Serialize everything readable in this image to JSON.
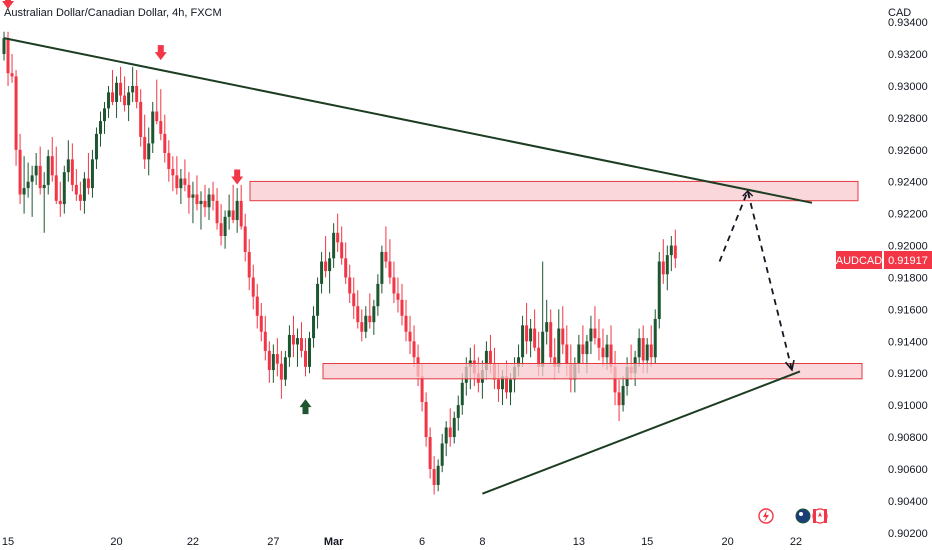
{
  "header": {
    "title": "Australian Dollar/Canadian Dollar, 4h, FXCM",
    "currency": "CAD"
  },
  "price_label": {
    "symbol": "AUDCAD",
    "value": "0.91917"
  },
  "colors": {
    "up": "#1e5631",
    "down": "#f23645",
    "trendline": "#1d3d23",
    "zone_fill": "#f7c9cd",
    "zone_stroke": "#e5393f",
    "label_bg": "#f23645"
  },
  "icons": [
    "flash-icon",
    "australia-flag-icon",
    "canada-flag-icon"
  ],
  "chart_data": {
    "type": "candlestick",
    "title": "Australian Dollar/Canadian Dollar, 4h, FXCM",
    "ylim": [
      0.9018,
      0.9352
    ],
    "y_ticks": [
      "0.93400",
      "0.93200",
      "0.93000",
      "0.92800",
      "0.92600",
      "0.92400",
      "0.92200",
      "0.92000",
      "0.91800",
      "0.91600",
      "0.91400",
      "0.91200",
      "0.91000",
      "0.90800",
      "0.90600",
      "0.90400",
      "0.90200"
    ],
    "x_ticks": [
      "15",
      "20",
      "22",
      "27",
      "Mar",
      "6",
      "8",
      "13",
      "15",
      "20",
      "22"
    ],
    "x_index_range": [
      0,
      209
    ],
    "x_tick_index": [
      1,
      28,
      47,
      67,
      82,
      104,
      119,
      143,
      160,
      180,
      197
    ],
    "resistance_zone": [
      0.92281,
      0.92402
    ],
    "support_zone": [
      0.91165,
      0.91261
    ],
    "trendlines": [
      {
        "from": [
          0,
          0.933
        ],
        "to": [
          201,
          0.92268
        ]
      },
      {
        "from": [
          119,
          0.90445
        ],
        "to": [
          198,
          0.91211
        ]
      }
    ],
    "projection": [
      [
        178,
        0.919
      ],
      [
        185,
        0.92341
      ],
      [
        196,
        0.91221
      ]
    ],
    "sell_arrows": [
      [
        1,
        0.9352
      ],
      [
        39,
        0.932
      ],
      [
        58,
        0.9242
      ]
    ],
    "buy_arrows": [
      [
        75,
        0.91
      ]
    ],
    "ohlc": [
      [
        0.932,
        0.9334,
        0.9316,
        0.933
      ],
      [
        0.933,
        0.9334,
        0.93,
        0.9308
      ],
      [
        0.9308,
        0.932,
        0.9302,
        0.9306
      ],
      [
        0.9306,
        0.931,
        0.925,
        0.926
      ],
      [
        0.926,
        0.927,
        0.9226,
        0.9232
      ],
      [
        0.9232,
        0.9256,
        0.922,
        0.9236
      ],
      [
        0.9236,
        0.9252,
        0.923,
        0.924
      ],
      [
        0.924,
        0.925,
        0.9218,
        0.9244
      ],
      [
        0.9244,
        0.9258,
        0.9238,
        0.925
      ],
      [
        0.925,
        0.9262,
        0.9232,
        0.9236
      ],
      [
        0.9236,
        0.9246,
        0.9208,
        0.9238
      ],
      [
        0.9238,
        0.926,
        0.9232,
        0.9256
      ],
      [
        0.9256,
        0.9268,
        0.924,
        0.9244
      ],
      [
        0.9244,
        0.9262,
        0.9226,
        0.9228
      ],
      [
        0.9228,
        0.924,
        0.9218,
        0.9226
      ],
      [
        0.9226,
        0.925,
        0.922,
        0.9246
      ],
      [
        0.9246,
        0.9266,
        0.924,
        0.9254
      ],
      [
        0.9254,
        0.9264,
        0.9234,
        0.9238
      ],
      [
        0.9238,
        0.9248,
        0.9228,
        0.9232
      ],
      [
        0.9232,
        0.924,
        0.9222,
        0.9228
      ],
      [
        0.9228,
        0.9246,
        0.922,
        0.9242
      ],
      [
        0.9242,
        0.9258,
        0.9232,
        0.9236
      ],
      [
        0.9236,
        0.926,
        0.923,
        0.9254
      ],
      [
        0.9254,
        0.9274,
        0.9248,
        0.927
      ],
      [
        0.927,
        0.9284,
        0.9262,
        0.9278
      ],
      [
        0.9278,
        0.929,
        0.927,
        0.9286
      ],
      [
        0.9286,
        0.93,
        0.928,
        0.9296
      ],
      [
        0.9296,
        0.931,
        0.9288,
        0.929
      ],
      [
        0.929,
        0.9306,
        0.928,
        0.9302
      ],
      [
        0.9302,
        0.9312,
        0.929,
        0.9294
      ],
      [
        0.9294,
        0.9306,
        0.9284,
        0.9288
      ],
      [
        0.9288,
        0.93,
        0.9278,
        0.9296
      ],
      [
        0.9296,
        0.9312,
        0.929,
        0.93
      ],
      [
        0.93,
        0.931,
        0.9286,
        0.929
      ],
      [
        0.929,
        0.9298,
        0.9262,
        0.9268
      ],
      [
        0.9268,
        0.9282,
        0.9248,
        0.9254
      ],
      [
        0.9254,
        0.9274,
        0.9244,
        0.9264
      ],
      [
        0.9264,
        0.929,
        0.9258,
        0.9284
      ],
      [
        0.9284,
        0.9304,
        0.9276,
        0.9278
      ],
      [
        0.9278,
        0.9298,
        0.9266,
        0.927
      ],
      [
        0.927,
        0.9282,
        0.9252,
        0.9258
      ],
      [
        0.9258,
        0.9266,
        0.924,
        0.9248
      ],
      [
        0.9248,
        0.9256,
        0.9234,
        0.9244
      ],
      [
        0.9244,
        0.9256,
        0.9232,
        0.9236
      ],
      [
        0.9236,
        0.9248,
        0.9226,
        0.9242
      ],
      [
        0.9242,
        0.9254,
        0.9234,
        0.9238
      ],
      [
        0.9238,
        0.9246,
        0.922,
        0.923
      ],
      [
        0.923,
        0.924,
        0.9214,
        0.9232
      ],
      [
        0.9232,
        0.9244,
        0.9222,
        0.9226
      ],
      [
        0.9226,
        0.9234,
        0.921,
        0.9228
      ],
      [
        0.9228,
        0.9238,
        0.9218,
        0.9224
      ],
      [
        0.9224,
        0.9236,
        0.9216,
        0.9232
      ],
      [
        0.9232,
        0.924,
        0.9222,
        0.9228
      ],
      [
        0.9228,
        0.9236,
        0.921,
        0.9214
      ],
      [
        0.9214,
        0.9226,
        0.92,
        0.9206
      ],
      [
        0.9206,
        0.9222,
        0.9198,
        0.9218
      ],
      [
        0.9218,
        0.9232,
        0.921,
        0.9222
      ],
      [
        0.9222,
        0.9238,
        0.9214,
        0.9216
      ],
      [
        0.9216,
        0.9236,
        0.9208,
        0.9228
      ],
      [
        0.9228,
        0.9238,
        0.921,
        0.9212
      ],
      [
        0.9212,
        0.922,
        0.919,
        0.9196
      ],
      [
        0.9196,
        0.9204,
        0.9172,
        0.918
      ],
      [
        0.918,
        0.9188,
        0.916,
        0.9168
      ],
      [
        0.9168,
        0.9176,
        0.9148,
        0.9156
      ],
      [
        0.9156,
        0.9164,
        0.914,
        0.9146
      ],
      [
        0.9146,
        0.9156,
        0.9128,
        0.9134
      ],
      [
        0.9134,
        0.914,
        0.9114,
        0.9122
      ],
      [
        0.9122,
        0.9138,
        0.9114,
        0.9132
      ],
      [
        0.9132,
        0.9142,
        0.9118,
        0.9126
      ],
      [
        0.9126,
        0.9134,
        0.9104,
        0.9116
      ],
      [
        0.9116,
        0.9134,
        0.9112,
        0.913
      ],
      [
        0.913,
        0.915,
        0.9124,
        0.9144
      ],
      [
        0.9144,
        0.9156,
        0.913,
        0.9138
      ],
      [
        0.9138,
        0.9148,
        0.9124,
        0.9142
      ],
      [
        0.9142,
        0.9152,
        0.913,
        0.9134
      ],
      [
        0.9134,
        0.9142,
        0.9118,
        0.9124
      ],
      [
        0.9124,
        0.9146,
        0.912,
        0.9142
      ],
      [
        0.9142,
        0.9162,
        0.9136,
        0.9156
      ],
      [
        0.9156,
        0.918,
        0.9148,
        0.9176
      ],
      [
        0.9176,
        0.9196,
        0.917,
        0.919
      ],
      [
        0.919,
        0.9206,
        0.918,
        0.9184
      ],
      [
        0.9184,
        0.9196,
        0.917,
        0.9192
      ],
      [
        0.9192,
        0.9214,
        0.9186,
        0.9208
      ],
      [
        0.9208,
        0.922,
        0.9196,
        0.9202
      ],
      [
        0.9202,
        0.9212,
        0.9188,
        0.9192
      ],
      [
        0.9192,
        0.9202,
        0.9176,
        0.918
      ],
      [
        0.918,
        0.9188,
        0.9164,
        0.917
      ],
      [
        0.917,
        0.918,
        0.9154,
        0.9162
      ],
      [
        0.9162,
        0.9172,
        0.9148,
        0.9152
      ],
      [
        0.9152,
        0.916,
        0.914,
        0.9146
      ],
      [
        0.9146,
        0.9162,
        0.9142,
        0.9156
      ],
      [
        0.9156,
        0.917,
        0.9148,
        0.9152
      ],
      [
        0.9152,
        0.9166,
        0.9144,
        0.9162
      ],
      [
        0.9162,
        0.9182,
        0.9156,
        0.9176
      ],
      [
        0.9176,
        0.92,
        0.917,
        0.9196
      ],
      [
        0.9196,
        0.9212,
        0.9186,
        0.919
      ],
      [
        0.919,
        0.9204,
        0.9176,
        0.918
      ],
      [
        0.918,
        0.919,
        0.9164,
        0.917
      ],
      [
        0.917,
        0.918,
        0.9158,
        0.9166
      ],
      [
        0.9166,
        0.9176,
        0.915,
        0.9156
      ],
      [
        0.9156,
        0.9166,
        0.914,
        0.9146
      ],
      [
        0.9146,
        0.9156,
        0.9132,
        0.914
      ],
      [
        0.914,
        0.915,
        0.9124,
        0.913
      ],
      [
        0.913,
        0.9138,
        0.9112,
        0.9118
      ],
      [
        0.9118,
        0.9126,
        0.9096,
        0.9102
      ],
      [
        0.9102,
        0.9108,
        0.9074,
        0.908
      ],
      [
        0.908,
        0.9086,
        0.9054,
        0.906
      ],
      [
        0.906,
        0.9068,
        0.9044,
        0.905
      ],
      [
        0.905,
        0.9066,
        0.9046,
        0.9062
      ],
      [
        0.9062,
        0.9082,
        0.9058,
        0.9076
      ],
      [
        0.9076,
        0.909,
        0.9068,
        0.9086
      ],
      [
        0.9086,
        0.9098,
        0.9074,
        0.908
      ],
      [
        0.908,
        0.9096,
        0.9076,
        0.9092
      ],
      [
        0.9092,
        0.9106,
        0.9084,
        0.91
      ],
      [
        0.91,
        0.912,
        0.9094,
        0.9114
      ],
      [
        0.9114,
        0.913,
        0.9106,
        0.9124
      ],
      [
        0.9124,
        0.9136,
        0.911,
        0.9128
      ],
      [
        0.9128,
        0.9138,
        0.9112,
        0.912
      ],
      [
        0.912,
        0.913,
        0.9108,
        0.9114
      ],
      [
        0.9114,
        0.9128,
        0.9104,
        0.9122
      ],
      [
        0.9122,
        0.914,
        0.9116,
        0.9134
      ],
      [
        0.9134,
        0.9144,
        0.912,
        0.9126
      ],
      [
        0.9126,
        0.9136,
        0.911,
        0.9116
      ],
      [
        0.9116,
        0.9126,
        0.9102,
        0.911
      ],
      [
        0.911,
        0.9122,
        0.91,
        0.9118
      ],
      [
        0.9118,
        0.9128,
        0.9104,
        0.9108
      ],
      [
        0.9108,
        0.912,
        0.91,
        0.9116
      ],
      [
        0.9116,
        0.913,
        0.9108,
        0.9124
      ],
      [
        0.9124,
        0.9138,
        0.9118,
        0.913
      ],
      [
        0.913,
        0.9156,
        0.9124,
        0.915
      ],
      [
        0.915,
        0.9164,
        0.9132,
        0.914
      ],
      [
        0.914,
        0.9154,
        0.913,
        0.9148
      ],
      [
        0.9148,
        0.916,
        0.9134,
        0.9136
      ],
      [
        0.9136,
        0.9146,
        0.9118,
        0.9124
      ],
      [
        0.9124,
        0.919,
        0.9118,
        0.9146
      ],
      [
        0.9146,
        0.9166,
        0.9138,
        0.9152
      ],
      [
        0.9152,
        0.916,
        0.9126,
        0.913
      ],
      [
        0.913,
        0.9142,
        0.9116,
        0.9124
      ],
      [
        0.9124,
        0.916,
        0.912,
        0.9148
      ],
      [
        0.9148,
        0.9162,
        0.9132,
        0.9138
      ],
      [
        0.9138,
        0.915,
        0.9118,
        0.9126
      ],
      [
        0.9126,
        0.9138,
        0.9108,
        0.9116
      ],
      [
        0.9116,
        0.913,
        0.9108,
        0.9126
      ],
      [
        0.9126,
        0.9144,
        0.912,
        0.9138
      ],
      [
        0.9138,
        0.915,
        0.9126,
        0.9132
      ],
      [
        0.9132,
        0.9144,
        0.912,
        0.914
      ],
      [
        0.914,
        0.9156,
        0.9132,
        0.9148
      ],
      [
        0.9148,
        0.9162,
        0.9138,
        0.9142
      ],
      [
        0.9142,
        0.9154,
        0.9128,
        0.9136
      ],
      [
        0.9136,
        0.9148,
        0.9124,
        0.913
      ],
      [
        0.913,
        0.9144,
        0.9122,
        0.9138
      ],
      [
        0.9138,
        0.915,
        0.912,
        0.9124
      ],
      [
        0.9124,
        0.9134,
        0.91,
        0.9108
      ],
      [
        0.9108,
        0.9116,
        0.909,
        0.91
      ],
      [
        0.91,
        0.9118,
        0.9096,
        0.9112
      ],
      [
        0.9112,
        0.913,
        0.9106,
        0.9124
      ],
      [
        0.9124,
        0.9138,
        0.9116,
        0.912
      ],
      [
        0.912,
        0.9134,
        0.9112,
        0.913
      ],
      [
        0.913,
        0.9148,
        0.9124,
        0.9142
      ],
      [
        0.9142,
        0.915,
        0.912,
        0.9128
      ],
      [
        0.9128,
        0.9142,
        0.912,
        0.9138
      ],
      [
        0.9138,
        0.915,
        0.9124,
        0.913
      ],
      [
        0.913,
        0.916,
        0.9126,
        0.9154
      ],
      [
        0.9154,
        0.9196,
        0.9148,
        0.919
      ],
      [
        0.919,
        0.9204,
        0.9176,
        0.9182
      ],
      [
        0.9182,
        0.92,
        0.9172,
        0.9194
      ],
      [
        0.9194,
        0.9206,
        0.9184,
        0.92
      ],
      [
        0.92,
        0.921,
        0.9186,
        0.9192
      ]
    ]
  }
}
